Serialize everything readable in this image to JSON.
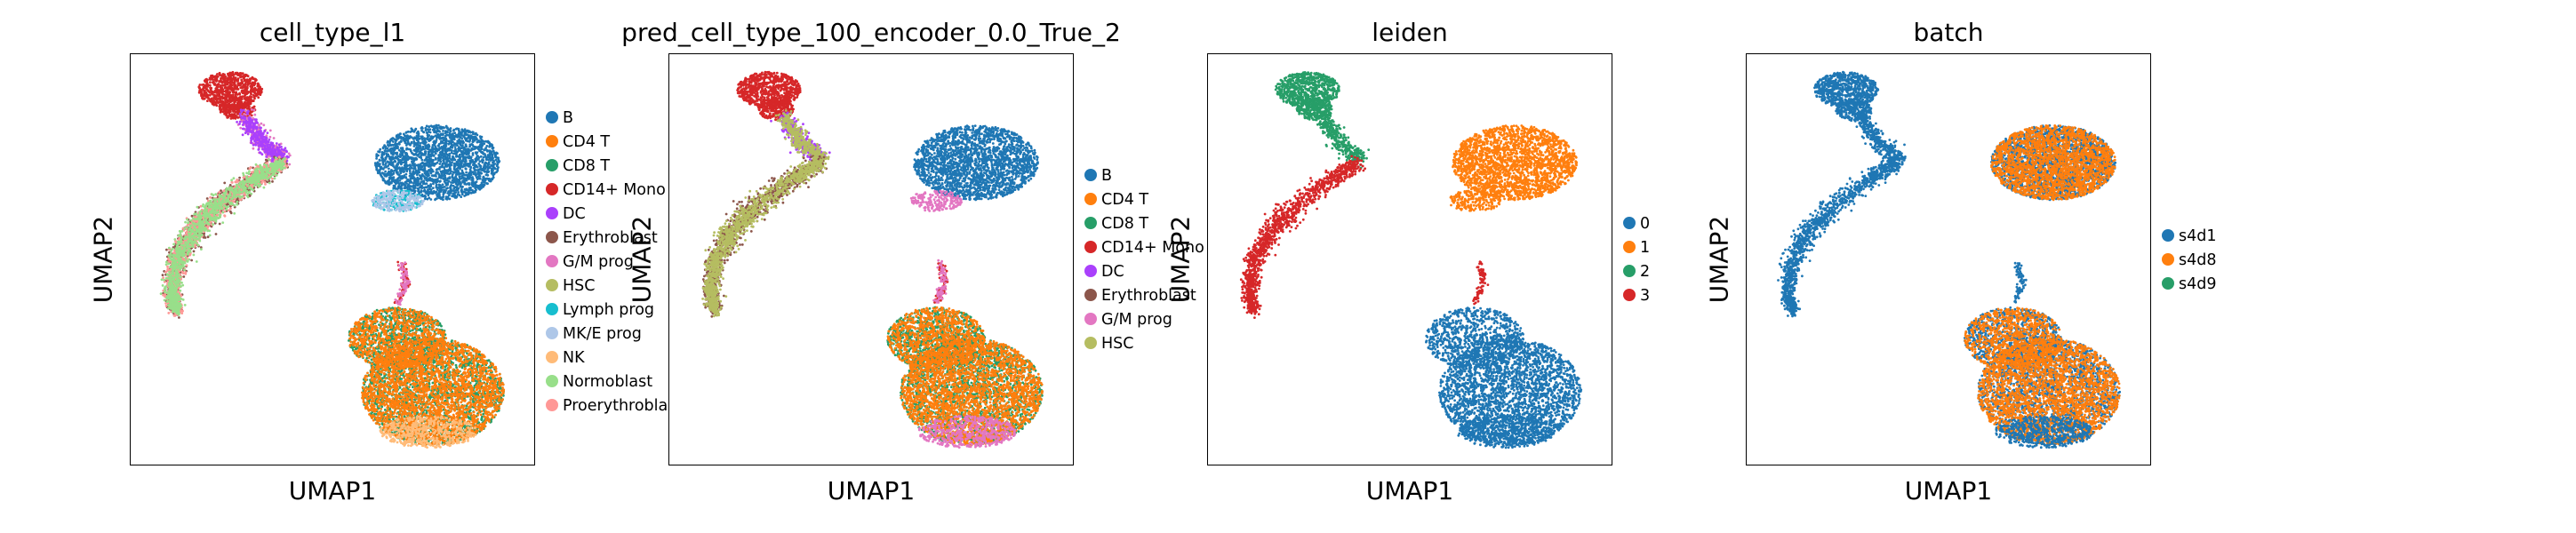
{
  "chart_data": [
    {
      "type": "scatter",
      "title": "cell_type_l1",
      "xlabel": "UMAP1",
      "ylabel": "UMAP2",
      "grid": false,
      "legend": "right",
      "categories": [
        {
          "name": "B",
          "color": "#1f77b4"
        },
        {
          "name": "CD4 T",
          "color": "#ff7f0e"
        },
        {
          "name": "CD8 T",
          "color": "#279e68"
        },
        {
          "name": "CD14+ Mono",
          "color": "#d62728"
        },
        {
          "name": "DC",
          "color": "#aa40fc"
        },
        {
          "name": "Erythroblast",
          "color": "#8c564b"
        },
        {
          "name": "G/M prog",
          "color": "#e377c2"
        },
        {
          "name": "HSC",
          "color": "#b5bd61"
        },
        {
          "name": "Lymph prog",
          "color": "#17becf"
        },
        {
          "name": "MK/E prog",
          "color": "#aec7e8"
        },
        {
          "name": "NK",
          "color": "#ffbb78"
        },
        {
          "name": "Normoblast",
          "color": "#98df8a"
        },
        {
          "name": "Proerythroblast",
          "color": "#ff9896"
        }
      ]
    },
    {
      "type": "scatter",
      "title": "pred_cell_type_100_encoder_0.0_True_2",
      "xlabel": "UMAP1",
      "ylabel": "UMAP2",
      "grid": false,
      "legend": "right",
      "categories": [
        {
          "name": "B",
          "color": "#1f77b4"
        },
        {
          "name": "CD4 T",
          "color": "#ff7f0e"
        },
        {
          "name": "CD8 T",
          "color": "#279e68"
        },
        {
          "name": "CD14+ Mono",
          "color": "#d62728"
        },
        {
          "name": "DC",
          "color": "#aa40fc"
        },
        {
          "name": "Erythroblast",
          "color": "#8c564b"
        },
        {
          "name": "G/M prog",
          "color": "#e377c2"
        },
        {
          "name": "HSC",
          "color": "#b5bd61"
        }
      ]
    },
    {
      "type": "scatter",
      "title": "leiden",
      "xlabel": "UMAP1",
      "ylabel": "UMAP2",
      "grid": false,
      "legend": "right",
      "categories": [
        {
          "name": "0",
          "color": "#1f77b4"
        },
        {
          "name": "1",
          "color": "#ff7f0e"
        },
        {
          "name": "2",
          "color": "#279e68"
        },
        {
          "name": "3",
          "color": "#d62728"
        }
      ]
    },
    {
      "type": "scatter",
      "title": "batch",
      "xlabel": "UMAP1",
      "ylabel": "UMAP2",
      "grid": false,
      "legend": "right",
      "categories": [
        {
          "name": "s4d1",
          "color": "#1f77b4"
        },
        {
          "name": "s4d8",
          "color": "#ff7f0e"
        },
        {
          "name": "s4d9",
          "color": "#279e68"
        }
      ]
    }
  ]
}
